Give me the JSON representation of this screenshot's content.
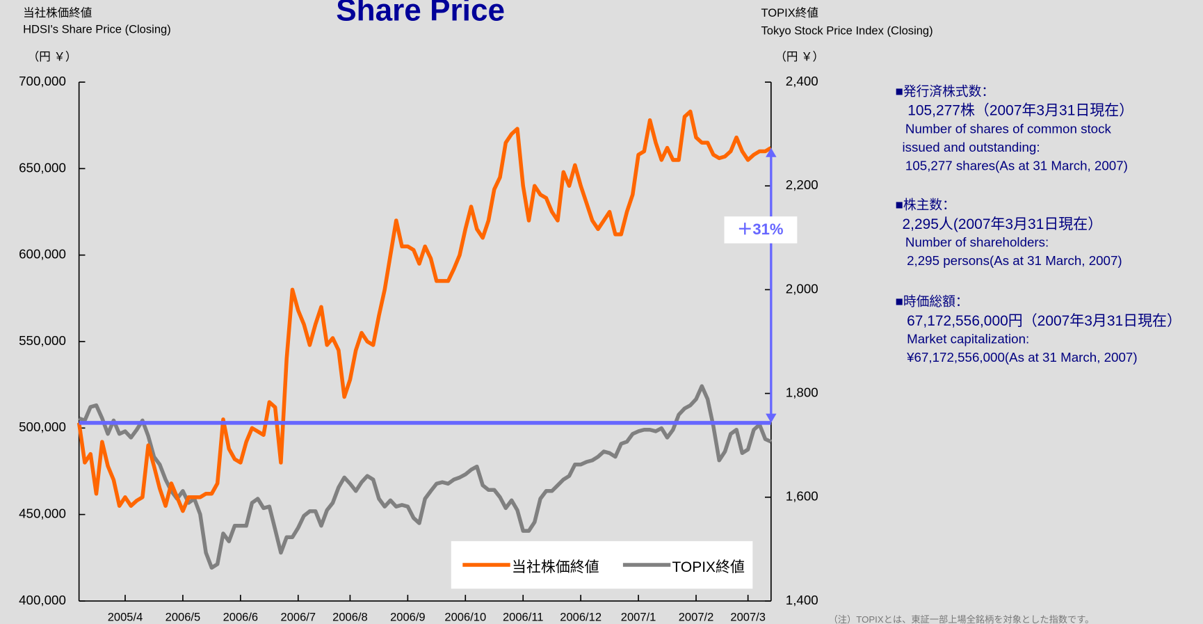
{
  "chart_data": {
    "type": "line",
    "title": "Share Price",
    "y_title_ja": "当社株価終値",
    "y_title": "HDSI's Share Price (Closing)",
    "y_unit": "（円 ￥）",
    "y2_title_ja": "TOPIX終値",
    "y2_title": "Tokyo Stock Price Index (Closing)",
    "y2_unit": "（円 ￥）",
    "annotation": "＋31%",
    "footnote": "（注）TOPIXとは、東証一部上場全銘柄を対象とした指数です。",
    "categories": [
      null,
      null,
      null,
      null,
      null,
      null,
      null,
      null,
      "2005/4",
      null,
      null,
      null,
      null,
      null,
      null,
      null,
      null,
      null,
      "2006/5",
      null,
      null,
      null,
      null,
      null,
      null,
      null,
      null,
      null,
      "2006/6",
      null,
      null,
      null,
      null,
      null,
      null,
      null,
      null,
      null,
      "2006/7",
      null,
      null,
      null,
      null,
      null,
      null,
      null,
      null,
      "2006/8",
      null,
      null,
      null,
      null,
      null,
      null,
      null,
      null,
      null,
      "2006/9",
      null,
      null,
      null,
      null,
      null,
      null,
      null,
      null,
      null,
      "2006/10",
      null,
      null,
      null,
      null,
      null,
      null,
      null,
      null,
      null,
      "2006/11",
      null,
      null,
      null,
      null,
      null,
      null,
      null,
      null,
      null,
      "2006/12",
      null,
      null,
      null,
      null,
      null,
      null,
      null,
      null,
      null,
      "2007/1",
      null,
      null,
      null,
      null,
      null,
      null,
      null,
      null,
      null,
      "2007/2",
      null,
      null,
      null,
      null,
      null,
      null,
      null,
      null,
      "2007/3",
      null,
      null,
      null,
      null
    ],
    "series": [
      {
        "name": "当社株価終値",
        "color": "#ff6600",
        "values": [
          503000,
          480000,
          485000,
          462000,
          492000,
          478000,
          470000,
          455000,
          460000,
          455000,
          458000,
          460000,
          490000,
          478000,
          465000,
          455000,
          468000,
          460000,
          452000,
          460000,
          460000,
          460000,
          462000,
          462000,
          468000,
          505000,
          488000,
          482000,
          480000,
          492000,
          500000,
          498000,
          496000,
          515000,
          512000,
          480000,
          540000,
          580000,
          568000,
          560000,
          548000,
          560000,
          570000,
          548000,
          552000,
          545000,
          518000,
          528000,
          545000,
          555000,
          550000,
          548000,
          565000,
          580000,
          600000,
          620000,
          605000,
          605000,
          603000,
          595000,
          605000,
          598000,
          585000,
          585000,
          585000,
          592000,
          600000,
          615000,
          628000,
          615000,
          610000,
          620000,
          638000,
          645000,
          665000,
          670000,
          673000,
          640000,
          620000,
          640000,
          635000,
          633000,
          625000,
          620000,
          648000,
          640000,
          652000,
          640000,
          630000,
          620000,
          615000,
          620000,
          625000,
          612000,
          612000,
          625000,
          635000,
          658000,
          660000,
          678000,
          665000,
          655000,
          662000,
          655000,
          655000,
          680000,
          683000,
          668000,
          665000,
          665000,
          658000,
          656000,
          657000,
          660000,
          668000,
          660000,
          655000,
          658000,
          660000,
          660000,
          662000
        ]
      },
      {
        "name": "TOPIX終値",
        "color": "#808080",
        "axis": "y2",
        "values": [
          1752,
          1748,
          1774,
          1777,
          1752,
          1722,
          1748,
          1722,
          1727,
          1715,
          1730,
          1748,
          1718,
          1678,
          1663,
          1634,
          1612,
          1597,
          1612,
          1589,
          1597,
          1567,
          1493,
          1464,
          1471,
          1530,
          1515,
          1545,
          1545,
          1545,
          1589,
          1597,
          1579,
          1582,
          1538,
          1493,
          1523,
          1523,
          1541,
          1564,
          1573,
          1573,
          1545,
          1575,
          1589,
          1619,
          1638,
          1626,
          1612,
          1629,
          1641,
          1634,
          1597,
          1582,
          1594,
          1582,
          1585,
          1582,
          1560,
          1550,
          1597,
          1612,
          1626,
          1629,
          1626,
          1634,
          1638,
          1644,
          1653,
          1659,
          1623,
          1614,
          1614,
          1600,
          1579,
          1594,
          1575,
          1535,
          1535,
          1552,
          1597,
          1612,
          1612,
          1623,
          1634,
          1641,
          1663,
          1663,
          1668,
          1671,
          1678,
          1688,
          1685,
          1678,
          1703,
          1707,
          1722,
          1727,
          1730,
          1730,
          1727,
          1733,
          1715,
          1730,
          1759,
          1771,
          1777,
          1789,
          1814,
          1789,
          1737,
          1671,
          1688,
          1722,
          1730,
          1685,
          1692,
          1730,
          1740,
          1712,
          1707
        ]
      }
    ],
    "ylim": [
      400000,
      700000
    ],
    "yticks": [
      {
        "value": 400000,
        "label": "400,000"
      },
      {
        "value": 450000,
        "label": "450,000"
      },
      {
        "value": 500000,
        "label": "500,000"
      },
      {
        "value": 550000,
        "label": "550,000"
      },
      {
        "value": 600000,
        "label": "600,000"
      },
      {
        "value": 650000,
        "label": "650,000"
      },
      {
        "value": 700000,
        "label": "700,000"
      }
    ],
    "y2lim": [
      1400,
      2400
    ],
    "y2ticks": [
      {
        "value": 1400,
        "label": "1,400"
      },
      {
        "value": 1600,
        "label": "1,600"
      },
      {
        "value": 1800,
        "label": "1,800"
      },
      {
        "value": 2000,
        "label": "2,000"
      },
      {
        "value": 2200,
        "label": "2,200"
      },
      {
        "value": 2400,
        "label": "2,400"
      }
    ],
    "grid": false
  },
  "info": [
    {
      "heading": "■発行済株式数：",
      "lines": [
        "105,277株（2007年3月31日現在）",
        "Number of shares of common stock",
        "issued and outstanding:",
        "105,277 shares(As at 31 March, 2007)"
      ]
    },
    {
      "heading": "■株主数：",
      "lines": [
        "2,295人(2007年3月31日現在）",
        "Number of shareholders:",
        "2,295 persons(As at 31 March, 2007)"
      ]
    },
    {
      "heading": "■時価総額：",
      "lines": [
        "67,172,556,000円（2007年3月31日現在）",
        "Market capitalization:",
        "¥67,172,556,000(As at 31 March, 2007)"
      ]
    }
  ]
}
